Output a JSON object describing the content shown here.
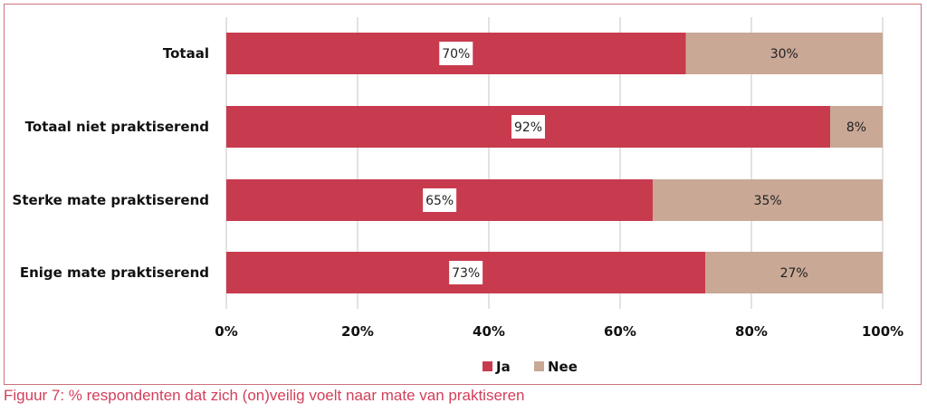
{
  "caption": "Figuur 7: % respondenten dat zich (on)veilig voelt naar mate van praktiseren",
  "chart_data": {
    "type": "bar",
    "orientation": "horizontal",
    "stacked": true,
    "categories": [
      "Totaal",
      "Totaal niet praktiserend",
      "Sterke mate praktiserend",
      "Enige mate praktiserend"
    ],
    "series": [
      {
        "name": "Ja",
        "color": "#c83a4e",
        "values": [
          70,
          92,
          65,
          73
        ],
        "labels": [
          "70%",
          "92%",
          "65%",
          "73%"
        ]
      },
      {
        "name": "Nee",
        "color": "#c9a896",
        "values": [
          30,
          8,
          35,
          27
        ],
        "labels": [
          "30%",
          "8%",
          "35%",
          "27%"
        ]
      }
    ],
    "xlim": [
      0,
      100
    ],
    "xticks": [
      0,
      20,
      40,
      60,
      80,
      100
    ],
    "xtick_labels": [
      "0%",
      "20%",
      "40%",
      "60%",
      "80%",
      "100%"
    ],
    "grid": true,
    "legend_position": "bottom"
  }
}
